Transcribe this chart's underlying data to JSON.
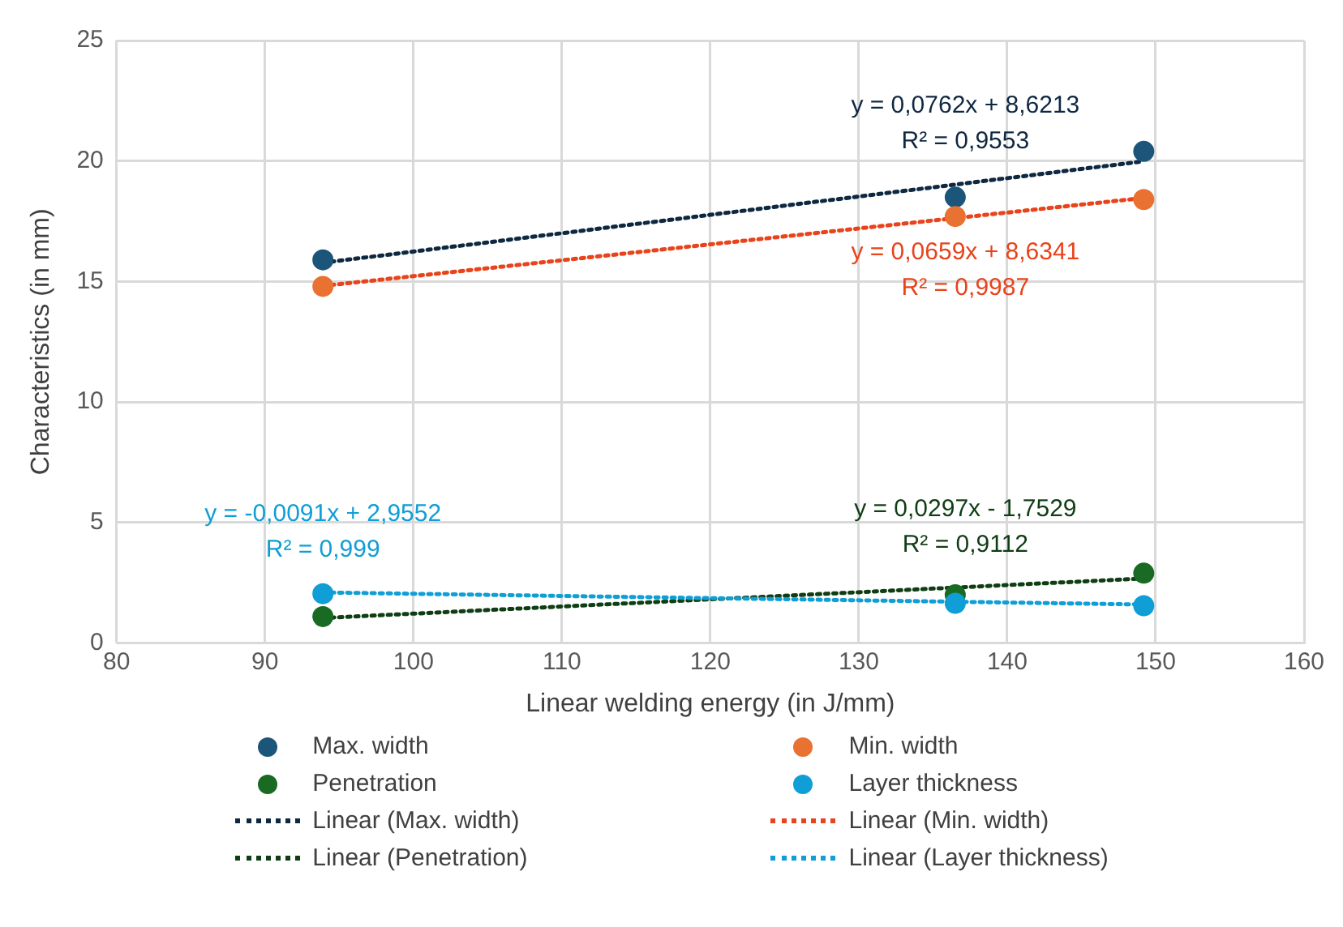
{
  "chart_data": {
    "type": "scatter",
    "xlabel": "Linear welding energy (in J/mm)",
    "ylabel": "Characteristics (in mm)",
    "xlim": [
      80,
      160
    ],
    "xticks": [
      80,
      90,
      100,
      110,
      120,
      130,
      140,
      150,
      160
    ],
    "ylim": [
      0,
      25
    ],
    "yticks": [
      0,
      5,
      10,
      15,
      20,
      25
    ],
    "grid": true,
    "legend": "bottom",
    "series": [
      {
        "name": "Max. width",
        "marker": "circle",
        "color": "#1b557a",
        "x": [
          93.9,
          136.5,
          149.2
        ],
        "values": [
          15.9,
          18.5,
          20.4
        ]
      },
      {
        "name": "Min. width",
        "marker": "circle",
        "color": "#e97132",
        "x": [
          93.9,
          136.5,
          149.2
        ],
        "values": [
          14.8,
          17.7,
          18.4
        ]
      },
      {
        "name": "Penetration",
        "marker": "circle",
        "color": "#196b24",
        "x": [
          93.9,
          136.5,
          149.2
        ],
        "values": [
          1.1,
          2.0,
          2.9
        ]
      },
      {
        "name": "Layer thickness",
        "marker": "circle",
        "color": "#0f9ed5",
        "x": [
          93.9,
          136.5,
          149.2
        ],
        "values": [
          2.05,
          1.65,
          1.55
        ]
      },
      {
        "name": "Linear (Max. width)",
        "type": "line",
        "line_style": "dotted",
        "color": "#0e2841",
        "x": [
          93.9,
          149.2
        ],
        "values": [
          15.78,
          19.99
        ]
      },
      {
        "name": "Linear (Min. width)",
        "type": "line",
        "line_style": "dotted",
        "color": "#e8431a",
        "x": [
          93.9,
          149.2
        ],
        "values": [
          14.82,
          18.47
        ]
      },
      {
        "name": "Linear (Penetration)",
        "type": "line",
        "line_style": "dotted",
        "color": "#0f3d14",
        "x": [
          93.9,
          149.2
        ],
        "values": [
          1.04,
          2.68
        ]
      },
      {
        "name": "Linear (Layer thickness)",
        "type": "line",
        "line_style": "dotted",
        "color": "#0f9ed5",
        "x": [
          93.9,
          149.2
        ],
        "values": [
          2.1,
          1.6
        ]
      }
    ],
    "annotations": [
      "y = 0,0762x + 8,6213",
      "R² = 0,9553",
      "y = 0,0659x + 8,6341",
      "R² = 0,9987",
      "y = 0,0297x - 1,7529",
      "R² = 0,9112",
      "y = -0,0091x + 2,9552",
      "R² = 0,999"
    ]
  }
}
